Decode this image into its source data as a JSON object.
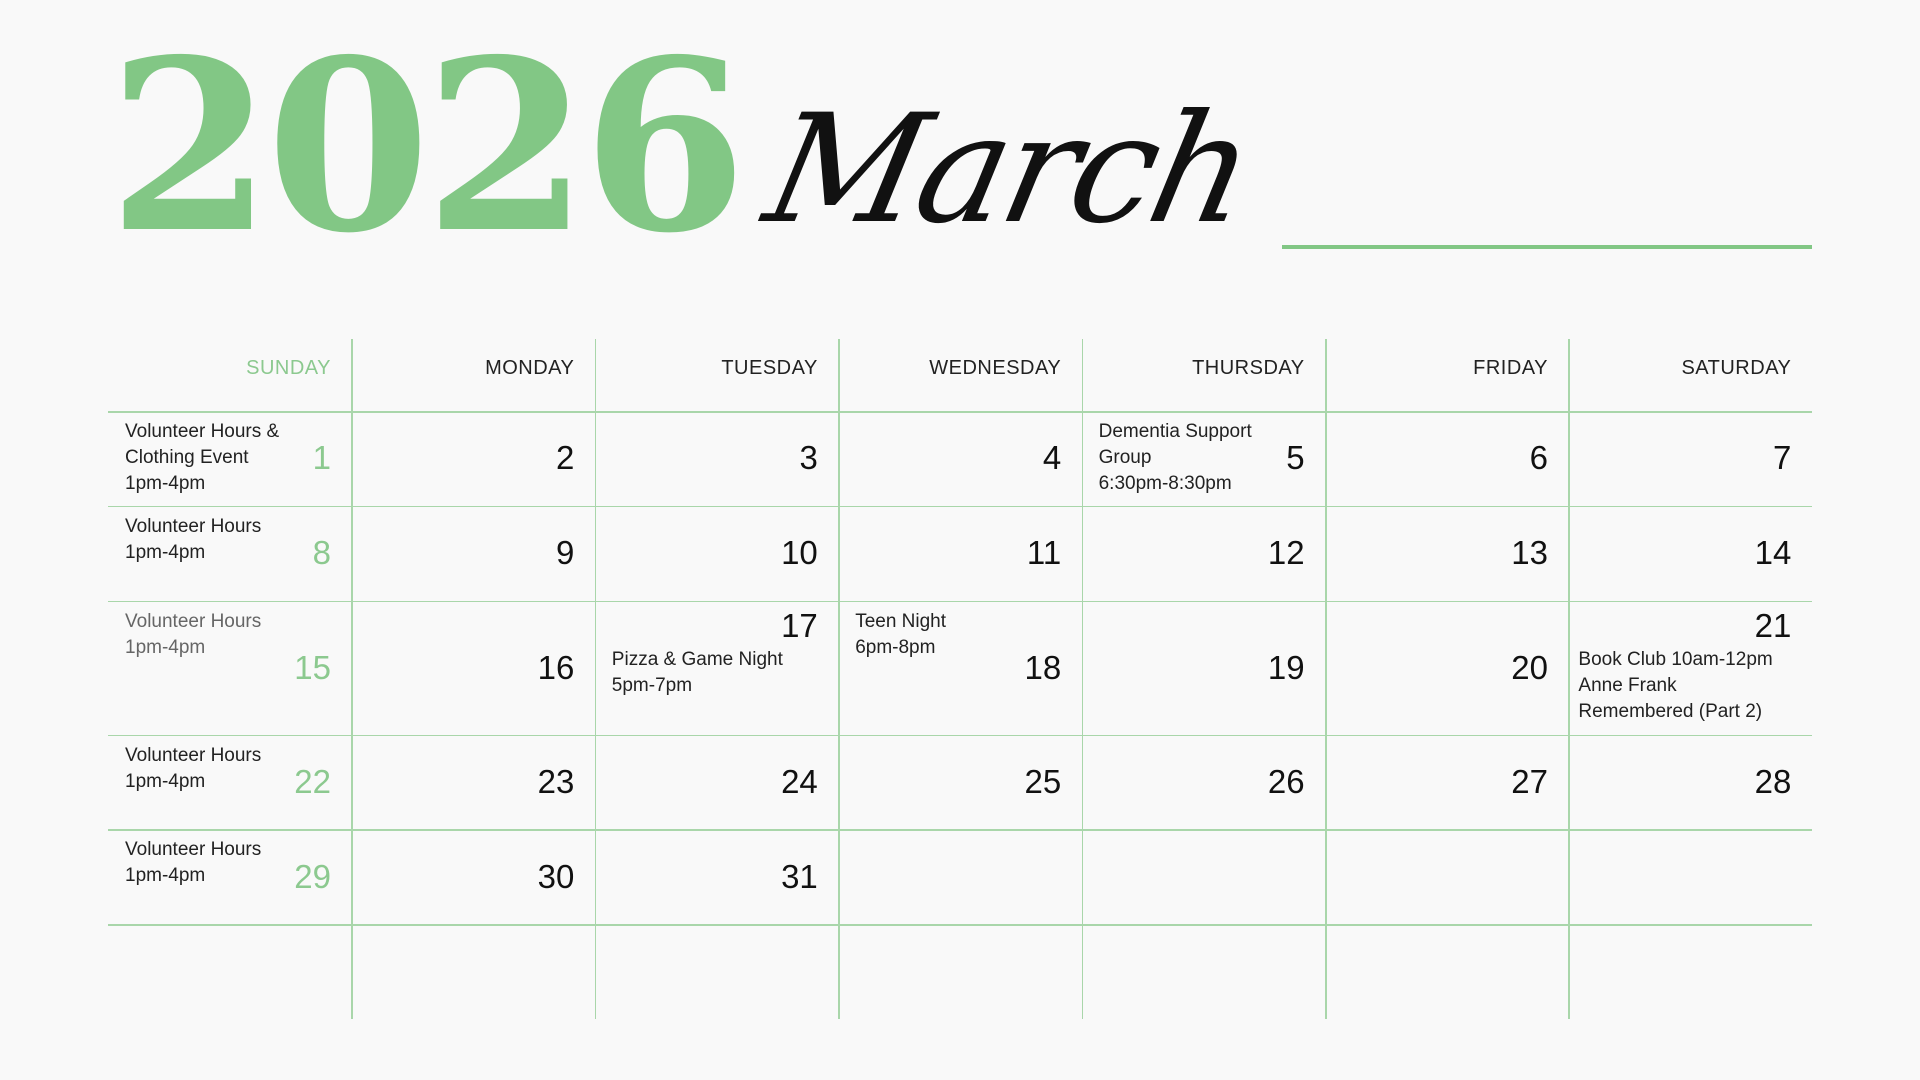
{
  "header": {
    "year": "2026",
    "month": "March"
  },
  "colors": {
    "accent": "#82c785",
    "grid": "#a9d6aa",
    "text": "#111111"
  },
  "weekdays": [
    "SUNDAY",
    "MONDAY",
    "TUESDAY",
    "WEDNESDAY",
    "THURSDAY",
    "FRIDAY",
    "SATURDAY"
  ],
  "weeks": [
    [
      {
        "day": "1",
        "event": [
          "Volunteer Hours &",
          "Clothing Event",
          "1pm-4pm"
        ]
      },
      {
        "day": "2"
      },
      {
        "day": "3"
      },
      {
        "day": "4"
      },
      {
        "day": "5",
        "event": [
          "Dementia Support",
          "Group",
          "6:30pm-8:30pm"
        ]
      },
      {
        "day": "6"
      },
      {
        "day": "7"
      }
    ],
    [
      {
        "day": "8",
        "event": [
          "Volunteer Hours",
          "1pm-4pm"
        ]
      },
      {
        "day": "9"
      },
      {
        "day": "10"
      },
      {
        "day": "11"
      },
      {
        "day": "12"
      },
      {
        "day": "13"
      },
      {
        "day": "14"
      }
    ],
    [
      {
        "day": "15",
        "event": [
          "Volunteer Hours",
          "1pm-4pm"
        ],
        "muted": true
      },
      {
        "day": "16"
      },
      {
        "day": "17",
        "event": [
          "Pizza & Game Night",
          "5pm-7pm"
        ]
      },
      {
        "day": "18",
        "event": [
          "Teen Night",
          "6pm-8pm"
        ]
      },
      {
        "day": "19"
      },
      {
        "day": "20"
      },
      {
        "day": "21",
        "event": [
          "Book Club 10am-12pm",
          "Anne Frank",
          "Remembered (Part 2)"
        ]
      }
    ],
    [
      {
        "day": "22",
        "event": [
          "Volunteer Hours",
          "1pm-4pm"
        ]
      },
      {
        "day": "23"
      },
      {
        "day": "24"
      },
      {
        "day": "25"
      },
      {
        "day": "26"
      },
      {
        "day": "27"
      },
      {
        "day": "28"
      }
    ],
    [
      {
        "day": "29",
        "event": [
          "Volunteer Hours",
          "1pm-4pm"
        ]
      },
      {
        "day": "30"
      },
      {
        "day": "31"
      },
      {},
      {},
      {},
      {}
    ],
    [
      {},
      {},
      {},
      {},
      {},
      {},
      {}
    ]
  ]
}
